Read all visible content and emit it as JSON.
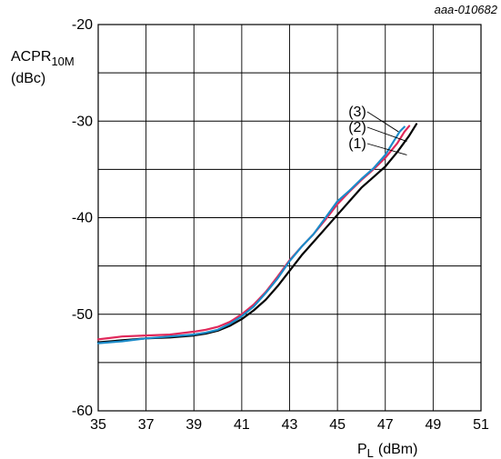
{
  "chart_data": {
    "type": "line",
    "reference": "aaa-010682",
    "ylabel": {
      "main": "ACPR",
      "sub": "10M",
      "unit": "(dBc)"
    },
    "xlabel": {
      "main": "P",
      "sub": "L",
      "unit": "(dBm)"
    },
    "xlim": [
      35,
      51
    ],
    "ylim": [
      -60,
      -20
    ],
    "xticks": [
      35,
      37,
      39,
      41,
      43,
      45,
      47,
      49,
      51
    ],
    "yticks": [
      -20,
      -30,
      -40,
      -50,
      -60
    ],
    "grid": true,
    "series": [
      {
        "name": "(1)",
        "color": "#000000",
        "points": [
          [
            35.0,
            -52.9
          ],
          [
            36.0,
            -52.7
          ],
          [
            37.0,
            -52.5
          ],
          [
            38.0,
            -52.4
          ],
          [
            39.0,
            -52.2
          ],
          [
            39.5,
            -52.0
          ],
          [
            40.0,
            -51.7
          ],
          [
            40.5,
            -51.2
          ],
          [
            41.0,
            -50.5
          ],
          [
            41.5,
            -49.6
          ],
          [
            42.0,
            -48.5
          ],
          [
            42.5,
            -47.1
          ],
          [
            43.0,
            -45.5
          ],
          [
            43.5,
            -43.9
          ],
          [
            44.0,
            -42.5
          ],
          [
            44.5,
            -41.1
          ],
          [
            45.0,
            -39.7
          ],
          [
            45.5,
            -38.3
          ],
          [
            46.0,
            -36.9
          ],
          [
            46.5,
            -35.8
          ],
          [
            47.0,
            -34.7
          ],
          [
            47.5,
            -33.2
          ],
          [
            48.0,
            -31.5
          ],
          [
            48.3,
            -30.3
          ]
        ]
      },
      {
        "name": "(2)",
        "color": "#e0285a",
        "points": [
          [
            35.0,
            -52.6
          ],
          [
            36.0,
            -52.3
          ],
          [
            37.0,
            -52.2
          ],
          [
            38.0,
            -52.1
          ],
          [
            39.0,
            -51.8
          ],
          [
            39.5,
            -51.6
          ],
          [
            40.0,
            -51.3
          ],
          [
            40.5,
            -50.8
          ],
          [
            41.0,
            -50.0
          ],
          [
            41.5,
            -49.0
          ],
          [
            42.0,
            -47.7
          ],
          [
            42.5,
            -46.1
          ],
          [
            43.0,
            -44.4
          ],
          [
            43.5,
            -43.0
          ],
          [
            44.0,
            -41.7
          ],
          [
            44.5,
            -40.2
          ],
          [
            45.0,
            -38.6
          ],
          [
            45.5,
            -37.3
          ],
          [
            46.0,
            -36.1
          ],
          [
            46.5,
            -35.0
          ],
          [
            47.0,
            -33.8
          ],
          [
            47.5,
            -32.3
          ],
          [
            47.8,
            -31.1
          ],
          [
            48.0,
            -30.5
          ]
        ]
      },
      {
        "name": "(3)",
        "color": "#1b8bc9",
        "points": [
          [
            35.0,
            -53.0
          ],
          [
            36.0,
            -52.8
          ],
          [
            37.0,
            -52.5
          ],
          [
            38.0,
            -52.3
          ],
          [
            39.0,
            -52.1
          ],
          [
            39.5,
            -51.9
          ],
          [
            40.0,
            -51.6
          ],
          [
            40.5,
            -51.0
          ],
          [
            41.0,
            -50.2
          ],
          [
            41.5,
            -49.2
          ],
          [
            42.0,
            -47.8
          ],
          [
            42.5,
            -46.3
          ],
          [
            43.0,
            -44.5
          ],
          [
            43.5,
            -43.0
          ],
          [
            44.0,
            -41.7
          ],
          [
            44.5,
            -40.0
          ],
          [
            45.0,
            -38.3
          ],
          [
            45.5,
            -37.2
          ],
          [
            46.0,
            -36.0
          ],
          [
            46.5,
            -34.9
          ],
          [
            47.0,
            -33.5
          ],
          [
            47.3,
            -32.3
          ],
          [
            47.6,
            -31.1
          ],
          [
            47.8,
            -30.6
          ]
        ]
      }
    ],
    "legend_labels": [
      {
        "text": "(3)",
        "color": "#1b8bc9",
        "anchor": [
          47.55,
          -31.1
        ]
      },
      {
        "text": "(2)",
        "color": "#e0285a",
        "anchor": [
          47.9,
          -32.1
        ]
      },
      {
        "text": "(1)",
        "color": "#000000",
        "anchor": [
          47.9,
          -33.5
        ]
      }
    ]
  }
}
